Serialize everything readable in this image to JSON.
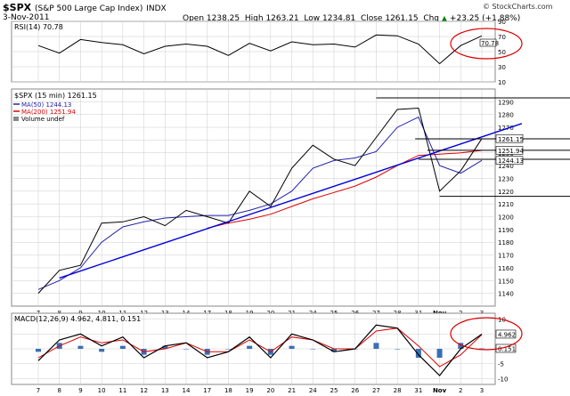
{
  "header": {
    "ticker": "$SPX",
    "name": "(S&P 500 Large Cap Index)",
    "exchange": "INDX",
    "date": "3-Nov-2011",
    "open_label": "Open",
    "open": "1238.25",
    "high_label": "High",
    "high": "1263.21",
    "low_label": "Low",
    "low": "1234.81",
    "close_label": "Close",
    "close": "1261.15",
    "chg_label": "Chg",
    "chg": "+23.25 (+1.88%)",
    "chg_arrow": "▲",
    "copyright": "© StockCharts.com"
  },
  "colors": {
    "price": "#000000",
    "ma50": "#2222aa",
    "ma200": "#dd0000",
    "trendline": "#0000dd",
    "circle": "#dd0000",
    "rsi_fill": "#2c8a2c",
    "macd": "#000000",
    "signal": "#dd0000",
    "hist": "#3a6fb5",
    "grid": "#cccccc"
  },
  "chart_data": [
    {
      "type": "line",
      "panel": "rsi",
      "label": "RSI(14) 70.78",
      "ylim": [
        10,
        90
      ],
      "y_ticks": [
        "90",
        "70",
        "50",
        "30",
        "10"
      ],
      "current_value": "70.78",
      "circled_value": true,
      "x": [
        "7",
        "8",
        "9",
        "10",
        "11",
        "12",
        "13",
        "14",
        "17",
        "18",
        "19",
        "20",
        "21",
        "24",
        "25",
        "26",
        "27",
        "28",
        "31",
        "Nov",
        "2",
        "3"
      ],
      "values": [
        58,
        48,
        66,
        62,
        59,
        47,
        57,
        60,
        57,
        45,
        61,
        51,
        63,
        59,
        60,
        56,
        72,
        71,
        60,
        34,
        58,
        70.78
      ]
    },
    {
      "type": "line",
      "panel": "price",
      "title": "$SPX (15 min) 1261.15",
      "legend": [
        {
          "name": "MA(50)",
          "value": "1244.13"
        },
        {
          "name": "MA(200)",
          "value": "1251.94"
        },
        {
          "name": "Volume",
          "value": "undef"
        }
      ],
      "ylim": [
        1130,
        1300
      ],
      "y_ticks": [
        "1290",
        "1280",
        "1270",
        "1260",
        "1250",
        "1240",
        "1230",
        "1220",
        "1210",
        "1200",
        "1190",
        "1180",
        "1170",
        "1160",
        "1150",
        "1140"
      ],
      "x_ticks": [
        "7",
        "8",
        "9",
        "10",
        "11",
        "12",
        "13",
        "14",
        "17",
        "18",
        "19",
        "20",
        "21",
        "24",
        "25",
        "26",
        "27",
        "28",
        "31",
        "Nov",
        "2",
        "3"
      ],
      "y_label_boxes": [
        "1261.15",
        "1251.94",
        "1244.13"
      ],
      "x": [
        "7",
        "8",
        "9",
        "10",
        "11",
        "12",
        "13",
        "14",
        "17",
        "18",
        "19",
        "20",
        "21",
        "24",
        "25",
        "26",
        "27",
        "28",
        "31",
        "Nov",
        "2",
        "3"
      ],
      "series": [
        {
          "name": "Price",
          "values": [
            1140,
            1158,
            1162,
            1195,
            1196,
            1200,
            1193,
            1205,
            1200,
            1195,
            1220,
            1208,
            1238,
            1256,
            1245,
            1240,
            1262,
            1284,
            1285,
            1220,
            1236,
            1261.15
          ]
        },
        {
          "name": "MA(50)",
          "values": [
            1143,
            1150,
            1160,
            1180,
            1192,
            1196,
            1199,
            1200,
            1201,
            1201,
            1205,
            1210,
            1220,
            1238,
            1244,
            1246,
            1251,
            1270,
            1278,
            1240,
            1234,
            1244.13
          ]
        },
        {
          "name": "MA(200)",
          "values": [
            null,
            null,
            null,
            null,
            null,
            null,
            null,
            null,
            1191,
            1195,
            1198,
            1202,
            1208,
            1214,
            1219,
            1224,
            1231,
            1240,
            1248,
            1249,
            1250,
            1251.94
          ]
        }
      ],
      "trendline": {
        "from": [
          "8",
          1152
        ],
        "to": [
          "3",
          1266
        ]
      },
      "horizontal_lines": [
        1293,
        1261,
        1252,
        1245,
        1216
      ]
    },
    {
      "type": "line",
      "panel": "macd",
      "label": "MACD(12,26,9) 4.962, 4.811, 0.151",
      "ylim": [
        -12,
        12
      ],
      "y_ticks": [
        "10",
        "5",
        "0",
        "-5",
        "-10"
      ],
      "y_label_boxes": [
        "4.962",
        "0.151"
      ],
      "x_ticks": [
        "7",
        "8",
        "9",
        "10",
        "11",
        "12",
        "13",
        "14",
        "17",
        "18",
        "19",
        "20",
        "21",
        "24",
        "25",
        "26",
        "27",
        "28",
        "31",
        "Nov",
        "2",
        "3"
      ],
      "x": [
        "7",
        "8",
        "9",
        "10",
        "11",
        "12",
        "13",
        "14",
        "17",
        "18",
        "19",
        "20",
        "21",
        "24",
        "25",
        "26",
        "27",
        "28",
        "31",
        "Nov",
        "2",
        "3"
      ],
      "series": [
        {
          "name": "MACD",
          "values": [
            -4,
            3,
            5,
            1,
            4,
            -3,
            1,
            2,
            -3,
            -1,
            4,
            -3,
            5,
            3,
            -1,
            0,
            8,
            7,
            -2,
            -9,
            0,
            4.962
          ]
        },
        {
          "name": "Signal",
          "values": [
            -3,
            1,
            4,
            2,
            3,
            -1,
            0,
            2,
            -1,
            -1,
            3,
            -1,
            4,
            3,
            0,
            0,
            6,
            7,
            1,
            -6,
            -2,
            4.811
          ]
        },
        {
          "name": "Histogram",
          "values": [
            -1,
            2,
            1,
            -1,
            1,
            -2,
            1,
            0,
            -2,
            0,
            1,
            -2,
            1,
            0,
            -1,
            0,
            2,
            0,
            -3,
            -3,
            2,
            0.151
          ]
        }
      ]
    }
  ]
}
